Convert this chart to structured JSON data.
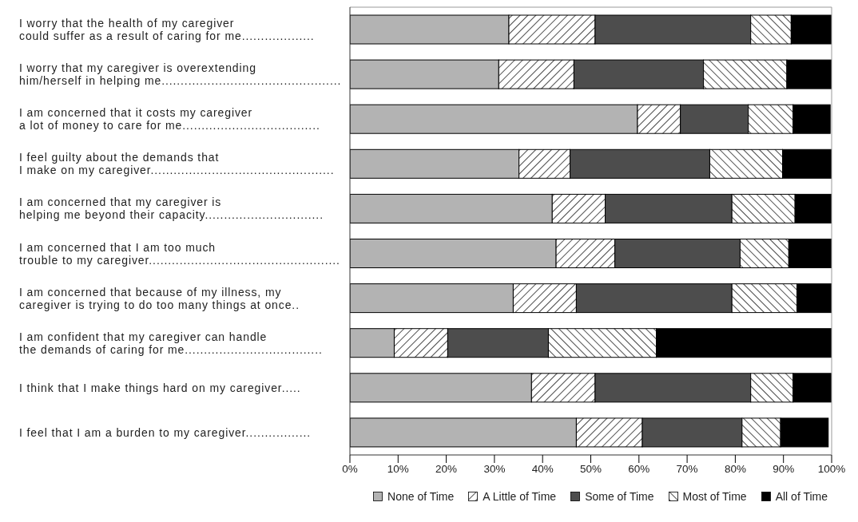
{
  "chart_data": {
    "type": "bar",
    "orientation": "horizontal",
    "stacked": true,
    "categories": [
      "I worry that the health of my caregiver\ncould suffer as a result of caring for me...................",
      "I worry that my caregiver is overextending\nhim/herself in helping me...............................................",
      "I am concerned that it costs my caregiver\na lot of money to care for me....................................",
      "I feel guilty about the demands that\nI make on my caregiver................................................",
      "I am concerned that my caregiver is\nhelping me beyond their capacity...............................",
      "I am concerned that I am too much\ntrouble to my caregiver..................................................",
      "I am concerned that because of my illness, my\ncaregiver is trying to do too many things at once..",
      "I am confident that my caregiver can handle\nthe demands of caring for me....................................",
      "I think that I make things hard on my caregiver.....",
      "I feel that I am a burden to my caregiver................."
    ],
    "series": [
      {
        "name": "None of Time",
        "color": "#b3b3b3",
        "values": [
          33.0,
          30.9,
          59.7,
          35.1,
          42.0,
          42.8,
          33.9,
          9.2,
          37.7,
          47.0
        ]
      },
      {
        "name": "A Little of Time",
        "color": "#ffffff",
        "values": [
          17.9,
          15.6,
          8.9,
          10.6,
          11.0,
          12.2,
          13.1,
          11.1,
          13.2,
          13.7
        ]
      },
      {
        "name": "Some of Time",
        "color": "#4d4d4d",
        "values": [
          32.3,
          26.9,
          14.1,
          29.0,
          26.3,
          26.0,
          32.3,
          20.9,
          32.3,
          20.7
        ]
      },
      {
        "name": "Most of Time",
        "color": "#ffffff",
        "values": [
          8.4,
          17.3,
          9.3,
          15.1,
          13.1,
          10.1,
          13.5,
          22.4,
          8.8,
          8.0
        ]
      },
      {
        "name": "All of Time",
        "color": "#000000",
        "values": [
          8.4,
          9.3,
          7.7,
          10.2,
          7.6,
          8.9,
          7.2,
          36.4,
          7.9,
          9.9
        ]
      }
    ],
    "xlim": [
      0,
      100
    ],
    "xticks": [
      {
        "value": 0,
        "label": "0%"
      },
      {
        "value": 10,
        "label": "10%"
      },
      {
        "value": 20,
        "label": "20%"
      },
      {
        "value": 30,
        "label": "30%"
      },
      {
        "value": 40,
        "label": "40%"
      },
      {
        "value": 50,
        "label": "50%"
      },
      {
        "value": 60,
        "label": "60%"
      },
      {
        "value": 70,
        "label": "70%"
      },
      {
        "value": 80,
        "label": "80%"
      },
      {
        "value": 90,
        "label": "90%"
      },
      {
        "value": 100,
        "label": "100%"
      }
    ],
    "grid": false,
    "legend": "bottom"
  }
}
